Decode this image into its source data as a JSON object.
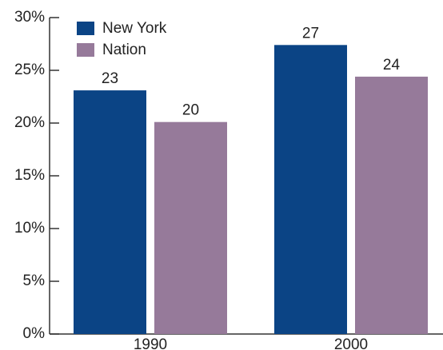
{
  "chart_data": {
    "type": "bar",
    "categories": [
      "1990",
      "2000"
    ],
    "series": [
      {
        "name": "New York",
        "color": "#0b4485",
        "values": [
          23.1,
          27.4
        ],
        "value_labels": [
          "23",
          "27"
        ]
      },
      {
        "name": "Nation",
        "color": "#967a9a",
        "values": [
          20.1,
          24.4
        ],
        "value_labels": [
          "20",
          "24"
        ]
      }
    ],
    "ylim": [
      0,
      30
    ],
    "yticks": [
      {
        "value": 0,
        "label": "0%"
      },
      {
        "value": 5,
        "label": "5%"
      },
      {
        "value": 10,
        "label": "10%"
      },
      {
        "value": 15,
        "label": "15%"
      },
      {
        "value": 20,
        "label": "20%"
      },
      {
        "value": 25,
        "label": "25%"
      },
      {
        "value": 30,
        "label": "30%"
      }
    ],
    "legend": "upper-left"
  }
}
